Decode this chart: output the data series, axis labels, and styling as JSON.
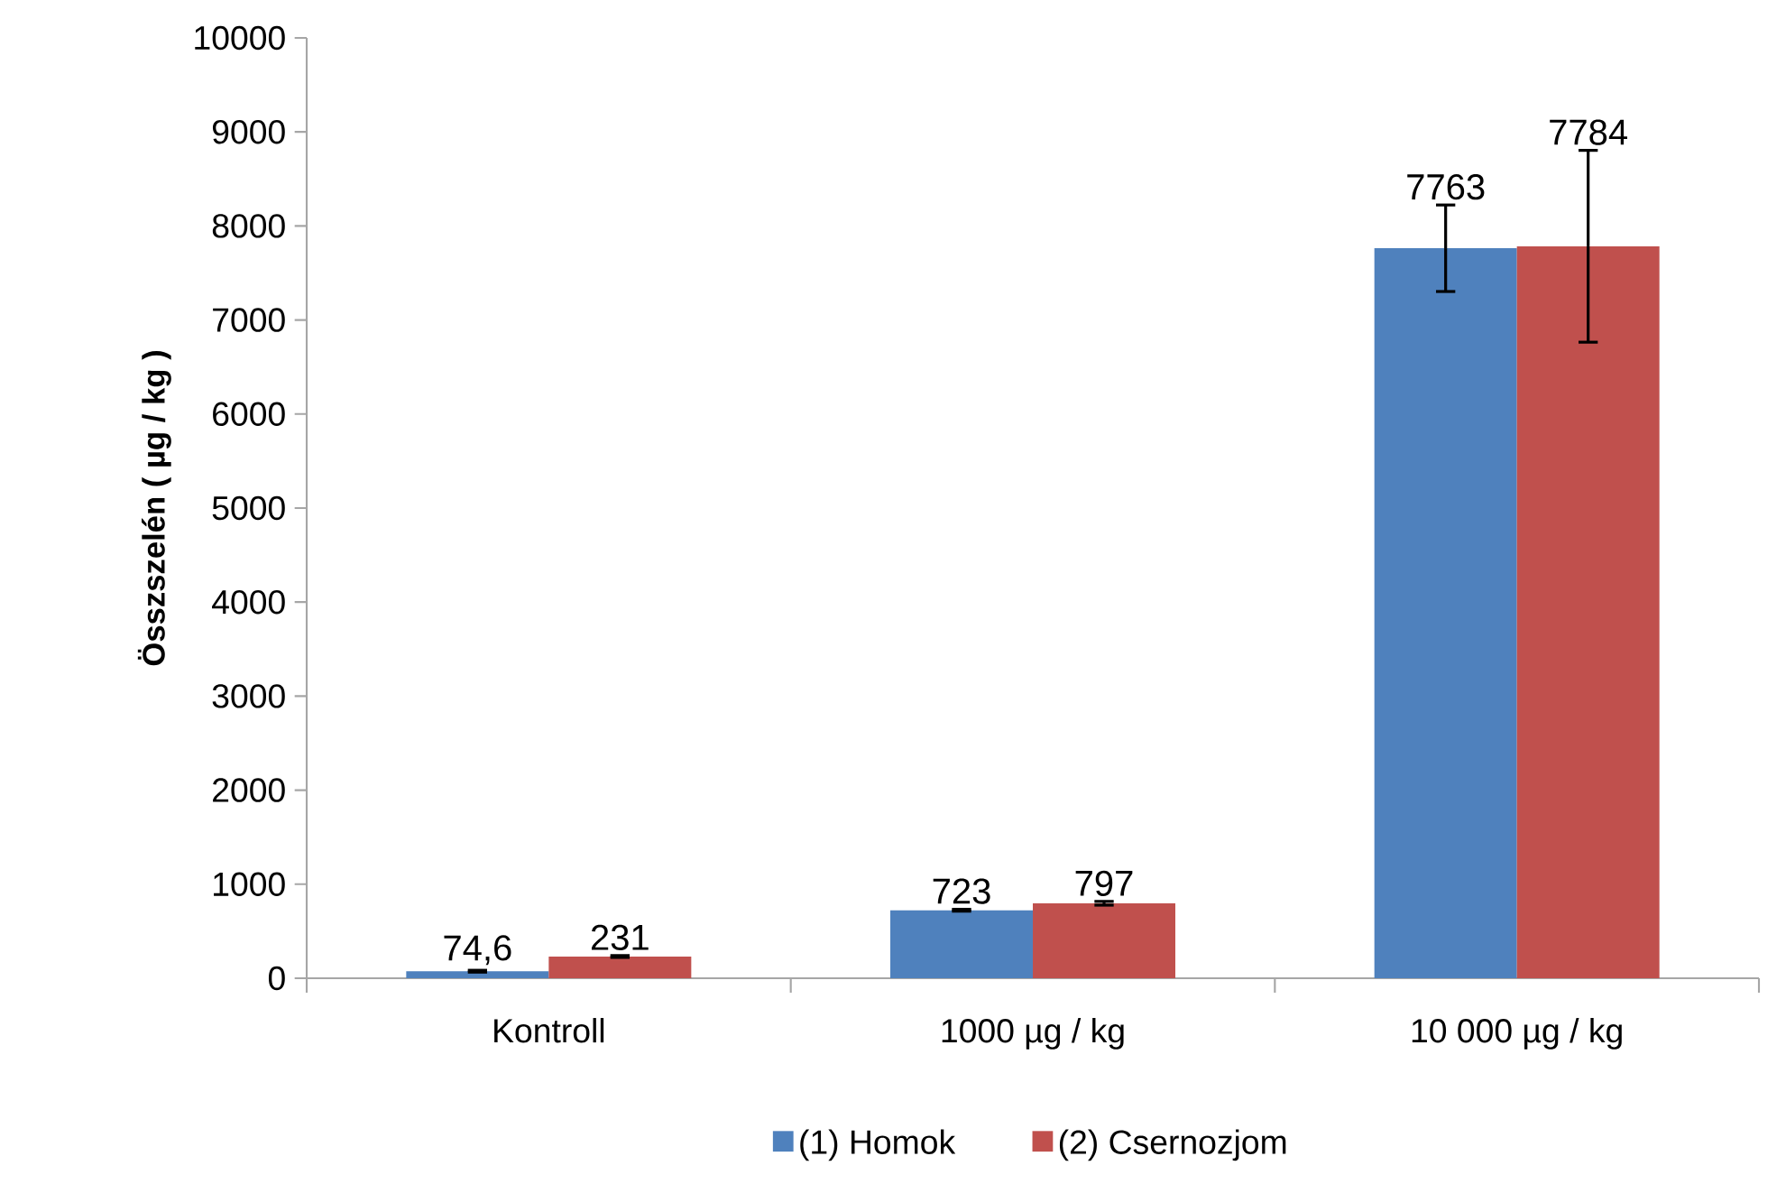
{
  "chart_data": {
    "type": "bar",
    "ylabel": "Összszelén ( µg / kg )",
    "categories": [
      "Kontroll",
      "1000 µg / kg",
      "10 000 µg / kg"
    ],
    "series": [
      {
        "name": "(1) Homok",
        "color": "#4f81bd",
        "values": [
          74.6,
          723,
          7763
        ],
        "errors": [
          10,
          10,
          460
        ],
        "value_labels": [
          "74,6",
          "723",
          "7763"
        ]
      },
      {
        "name": "(2) Csernozjom",
        "color": "#c0504d",
        "values": [
          231,
          797,
          7784
        ],
        "errors": [
          10,
          20,
          1020
        ],
        "value_labels": [
          "231",
          "797",
          "7784"
        ]
      }
    ],
    "ylim": [
      0,
      10000
    ],
    "yticks": [
      0,
      1000,
      2000,
      3000,
      4000,
      5000,
      6000,
      7000,
      8000,
      9000,
      10000
    ],
    "grid": false,
    "legend": "bottom"
  }
}
